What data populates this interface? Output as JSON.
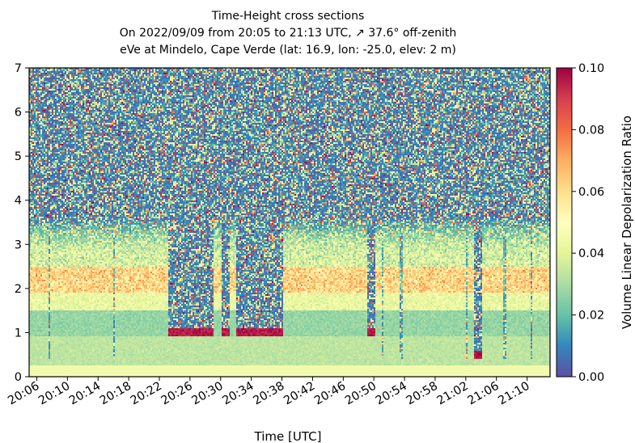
{
  "chart_data": {
    "type": "heatmap",
    "title": [
      "Time-Height cross sections",
      "On 2022/09/09 from 20:05 to 21:13 UTC, ↗ 37.6° off-zenith",
      "eVe at Mindelo, Cape Verde (lat: 16.9, lon: -25.0, elev: 2 m)"
    ],
    "xlabel": "Time [UTC]",
    "ylabel": "",
    "colorbar_label": "Volume Linear Depolarization Ratio",
    "x_ticks": [
      "20:06",
      "20:10",
      "20:14",
      "20:18",
      "20:22",
      "20:26",
      "20:30",
      "20:34",
      "20:38",
      "20:42",
      "20:46",
      "20:50",
      "20:54",
      "20:58",
      "21:02",
      "21:06",
      "21:10"
    ],
    "y_ticks": [
      "0",
      "1",
      "2",
      "3",
      "4",
      "5",
      "6",
      "7"
    ],
    "ylim": [
      0,
      7
    ],
    "xlim_minutes_from_20_05": [
      0,
      68
    ],
    "colorbar_ticks": [
      "0.00",
      "0.02",
      "0.04",
      "0.06",
      "0.08",
      "0.10"
    ],
    "clim": [
      0,
      0.1
    ],
    "colormap": "Spectral_r",
    "colormap_stops": [
      "#5e4fa2",
      "#3288bd",
      "#66c2a5",
      "#abdda4",
      "#e6f598",
      "#ffffbf",
      "#fee08b",
      "#fdae61",
      "#f46d43",
      "#d53e4f",
      "#9e0142"
    ],
    "layers": [
      {
        "height_range": [
          0,
          0.3
        ],
        "vldr_approx": 0.03
      },
      {
        "height_range": [
          0.3,
          0.9
        ],
        "vldr_approx": 0.035
      },
      {
        "height_range": [
          0.9,
          1.5
        ],
        "vldr_approx": 0.028
      },
      {
        "height_range": [
          1.5,
          1.9
        ],
        "vldr_approx": 0.045
      },
      {
        "height_range": [
          1.9,
          2.5
        ],
        "vldr_approx": 0.065
      },
      {
        "height_range": [
          2.5,
          3.2
        ],
        "vldr_approx": 0.04
      },
      {
        "height_range": [
          3.2,
          7.0
        ],
        "vldr_approx": "noise"
      }
    ],
    "cloud_columns": [
      {
        "time_range": [
          "20:23",
          "20:29"
        ],
        "base_height": 1.0
      },
      {
        "time_range": [
          "20:30",
          "20:31"
        ],
        "base_height": 1.0
      },
      {
        "time_range": [
          "20:32",
          "20:38"
        ],
        "base_height": 1.0
      },
      {
        "time_range": [
          "20:49",
          "20:50"
        ],
        "base_height": 1.0
      },
      {
        "time_range": [
          "21:03",
          "21:04"
        ],
        "base_height": 0.5
      }
    ]
  }
}
